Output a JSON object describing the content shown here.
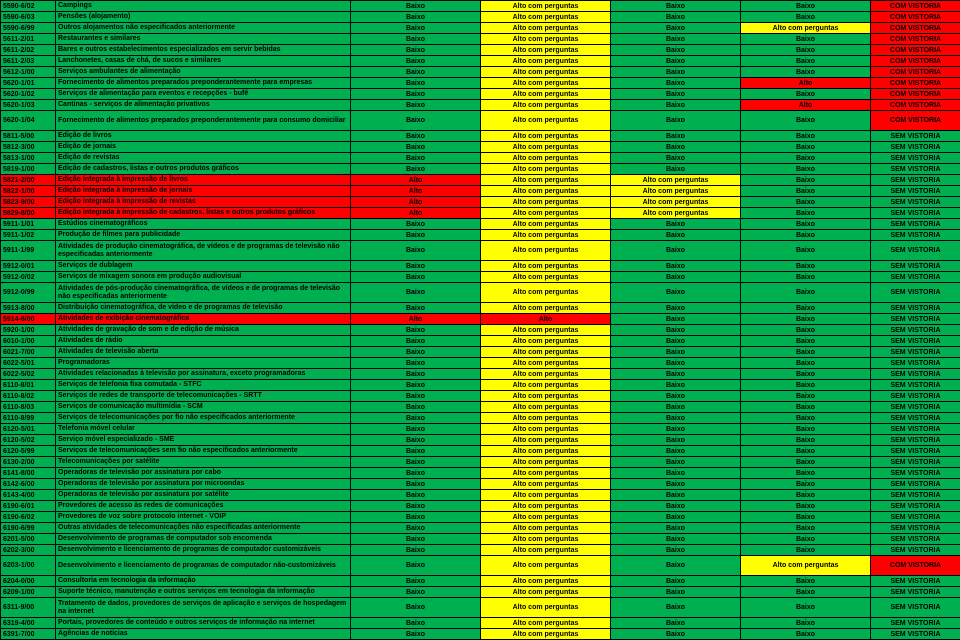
{
  "labels": {
    "baixo": "Baixo",
    "alto": "Alto",
    "altoPerg": "Alto com perguntas",
    "comV": "COM VISTORIA",
    "semV": "SEM VISTORIA"
  },
  "colors": {
    "Baixo": "c-green",
    "Alto": "c-red",
    "Alto com perguntas": "c-yellow",
    "COM VISTORIA": "c-red",
    "SEM VISTORIA": "c-green"
  },
  "rows": [
    {
      "code": "5590-6/02",
      "desc": "Campings",
      "a": "Baixo",
      "b": "Alto com perguntas",
      "c": "Baixo",
      "d": "Baixo",
      "e": "COM VISTORIA"
    },
    {
      "code": "5590-6/03",
      "desc": "Pensões (alojamento)",
      "a": "Baixo",
      "b": "Alto com perguntas",
      "c": "Baixo",
      "d": "Baixo",
      "e": "COM VISTORIA"
    },
    {
      "code": "5590-6/99",
      "desc": "Outros alojamentos não especificados anteriormente",
      "a": "Baixo",
      "b": "Alto com perguntas",
      "c": "Baixo",
      "d": "Alto com perguntas",
      "e": "COM VISTORIA"
    },
    {
      "code": "5611-2/01",
      "desc": "Restaurantes e similares",
      "a": "Baixo",
      "b": "Alto com perguntas",
      "c": "Baixo",
      "d": "Baixo",
      "e": "COM VISTORIA"
    },
    {
      "code": "5611-2/02",
      "desc": "Bares e outros estabelecimentos especializados em servir bebidas",
      "a": "Baixo",
      "b": "Alto com perguntas",
      "c": "Baixo",
      "d": "Baixo",
      "e": "COM VISTORIA"
    },
    {
      "code": "5611-2/03",
      "desc": "Lanchonetes, casas de chá, de sucos e similares",
      "a": "Baixo",
      "b": "Alto com perguntas",
      "c": "Baixo",
      "d": "Baixo",
      "e": "COM VISTORIA"
    },
    {
      "code": "5612-1/00",
      "desc": "Serviços ambulantes de alimentação",
      "a": "Baixo",
      "b": "Alto com perguntas",
      "c": "Baixo",
      "d": "Baixo",
      "e": "COM VISTORIA"
    },
    {
      "code": "5620-1/01",
      "desc": "Fornecimento de alimentos preparados preponderantemente para empresas",
      "a": "Baixo",
      "b": "Alto com perguntas",
      "c": "Baixo",
      "d": "Alto",
      "e": "COM VISTORIA"
    },
    {
      "code": "5620-1/02",
      "desc": "Serviços de alimentação para eventos e recepções - bufê",
      "a": "Baixo",
      "b": "Alto com perguntas",
      "c": "Baixo",
      "d": "Baixo",
      "e": "COM VISTORIA"
    },
    {
      "code": "5620-1/03",
      "desc": "Cantinas - serviços de alimentação privativos",
      "a": "Baixo",
      "b": "Alto com perguntas",
      "c": "Baixo",
      "d": "Alto",
      "e": "COM VISTORIA"
    },
    {
      "code": "5620-1/04",
      "desc": "Fornecimento de alimentos preparados preponderantemente para consumo domiciliar",
      "a": "Baixo",
      "b": "Alto com perguntas",
      "c": "Baixo",
      "d": "Baixo",
      "e": "COM VISTORIA",
      "tall": true
    },
    {
      "code": "5811-5/00",
      "desc": "Edição de livros",
      "a": "Baixo",
      "b": "Alto com perguntas",
      "c": "Baixo",
      "d": "Baixo",
      "e": "SEM VISTORIA"
    },
    {
      "code": "5812-3/00",
      "desc": "Edição de jornais",
      "a": "Baixo",
      "b": "Alto com perguntas",
      "c": "Baixo",
      "d": "Baixo",
      "e": "SEM VISTORIA"
    },
    {
      "code": "5813-1/00",
      "desc": "Edição de revistas",
      "a": "Baixo",
      "b": "Alto com perguntas",
      "c": "Baixo",
      "d": "Baixo",
      "e": "SEM VISTORIA"
    },
    {
      "code": "5819-1/00",
      "desc": "Edição de cadastros, listas e outros produtos gráficos",
      "a": "Baixo",
      "b": "Alto com perguntas",
      "c": "Baixo",
      "d": "Baixo",
      "e": "SEM VISTORIA"
    },
    {
      "code": "5821-2/00",
      "desc": "Edição integrada à impressão de livros",
      "a": "Alto",
      "b": "Alto com perguntas",
      "c": "Alto com perguntas",
      "d": "Baixo",
      "e": "SEM VISTORIA"
    },
    {
      "code": "5822-1/00",
      "desc": "Edição integrada à impressão de jornais",
      "a": "Alto",
      "b": "Alto com perguntas",
      "c": "Alto com perguntas",
      "d": "Baixo",
      "e": "SEM VISTORIA"
    },
    {
      "code": "5823-9/00",
      "desc": "Edição integrada à impressão de revistas",
      "a": "Alto",
      "b": "Alto com perguntas",
      "c": "Alto com perguntas",
      "d": "Baixo",
      "e": "SEM VISTORIA"
    },
    {
      "code": "5829-8/00",
      "desc": "Edição integrada à impressão de cadastros, listas e outros produtos gráficos",
      "a": "Alto",
      "b": "Alto com perguntas",
      "c": "Alto com perguntas",
      "d": "Baixo",
      "e": "SEM VISTORIA"
    },
    {
      "code": "5911-1/01",
      "desc": "Estúdios cinematográficos",
      "a": "Baixo",
      "b": "Alto com perguntas",
      "c": "Baixo",
      "d": "Baixo",
      "e": "SEM VISTORIA"
    },
    {
      "code": "5911-1/02",
      "desc": "Produção de filmes para publicidade",
      "a": "Baixo",
      "b": "Alto com perguntas",
      "c": "Baixo",
      "d": "Baixo",
      "e": "SEM VISTORIA"
    },
    {
      "code": "5911-1/99",
      "desc": "Atividades de produção cinematográfica, de vídeos e de programas de televisão não especificadas anteriormente",
      "a": "Baixo",
      "b": "Alto com perguntas",
      "c": "Baixo",
      "d": "Baixo",
      "e": "SEM VISTORIA",
      "tall": true
    },
    {
      "code": "5912-0/01",
      "desc": "Serviços de dublagem",
      "a": "Baixo",
      "b": "Alto com perguntas",
      "c": "Baixo",
      "d": "Baixo",
      "e": "SEM VISTORIA"
    },
    {
      "code": "5912-0/02",
      "desc": "Serviços de mixagem sonora em produção audiovisual",
      "a": "Baixo",
      "b": "Alto com perguntas",
      "c": "Baixo",
      "d": "Baixo",
      "e": "SEM VISTORIA"
    },
    {
      "code": "5912-0/99",
      "desc": "Atividades de pós-produção cinematográfica, de vídeos e de programas de televisão não especificadas anteriormente",
      "a": "Baixo",
      "b": "Alto com perguntas",
      "c": "Baixo",
      "d": "Baixo",
      "e": "SEM VISTORIA",
      "tall": true
    },
    {
      "code": "5913-8/00",
      "desc": "Distribuição cinematográfica, de vídeo e de programas de televisão",
      "a": "Baixo",
      "b": "Alto com perguntas",
      "c": "Baixo",
      "d": "Baixo",
      "e": "SEM VISTORIA"
    },
    {
      "code": "5914-6/00",
      "desc": "Atividades de exibição cinematográfica",
      "a": "Alto",
      "b": "Alto",
      "c": "Baixo",
      "d": "Baixo",
      "e": "SEM VISTORIA"
    },
    {
      "code": "5920-1/00",
      "desc": "Atividades de gravação de som e de edição de música",
      "a": "Baixo",
      "b": "Alto com perguntas",
      "c": "Baixo",
      "d": "Baixo",
      "e": "SEM VISTORIA"
    },
    {
      "code": "6010-1/00",
      "desc": "Atividades de rádio",
      "a": "Baixo",
      "b": "Alto com perguntas",
      "c": "Baixo",
      "d": "Baixo",
      "e": "SEM VISTORIA"
    },
    {
      "code": "6021-7/00",
      "desc": "Atividades de televisão aberta",
      "a": "Baixo",
      "b": "Alto com perguntas",
      "c": "Baixo",
      "d": "Baixo",
      "e": "SEM VISTORIA"
    },
    {
      "code": "6022-5/01",
      "desc": "Programadoras",
      "a": "Baixo",
      "b": "Alto com perguntas",
      "c": "Baixo",
      "d": "Baixo",
      "e": "SEM VISTORIA"
    },
    {
      "code": "6022-5/02",
      "desc": "Atividades relacionadas à televisão por assinatura, exceto programadoras",
      "a": "Baixo",
      "b": "Alto com perguntas",
      "c": "Baixo",
      "d": "Baixo",
      "e": "SEM VISTORIA"
    },
    {
      "code": "6110-8/01",
      "desc": "Serviços de telefonia fixa comutada - STFC",
      "a": "Baixo",
      "b": "Alto com perguntas",
      "c": "Baixo",
      "d": "Baixo",
      "e": "SEM VISTORIA"
    },
    {
      "code": "6110-8/02",
      "desc": "Serviços de redes de transporte de telecomunicações - SRTT",
      "a": "Baixo",
      "b": "Alto com perguntas",
      "c": "Baixo",
      "d": "Baixo",
      "e": "SEM VISTORIA"
    },
    {
      "code": "6110-8/03",
      "desc": "Serviços de comunicação multimídia - SCM",
      "a": "Baixo",
      "b": "Alto com perguntas",
      "c": "Baixo",
      "d": "Baixo",
      "e": "SEM VISTORIA"
    },
    {
      "code": "6110-8/99",
      "desc": "Serviços de telecomunicações por fio não especificados anteriormente",
      "a": "Baixo",
      "b": "Alto com perguntas",
      "c": "Baixo",
      "d": "Baixo",
      "e": "SEM VISTORIA"
    },
    {
      "code": "6120-5/01",
      "desc": "Telefonia móvel celular",
      "a": "Baixo",
      "b": "Alto com perguntas",
      "c": "Baixo",
      "d": "Baixo",
      "e": "SEM VISTORIA"
    },
    {
      "code": "6120-5/02",
      "desc": "Serviço móvel especializado - SME",
      "a": "Baixo",
      "b": "Alto com perguntas",
      "c": "Baixo",
      "d": "Baixo",
      "e": "SEM VISTORIA"
    },
    {
      "code": "6120-5/99",
      "desc": "Serviços de telecomunicações sem fio não especificados anteriormente",
      "a": "Baixo",
      "b": "Alto com perguntas",
      "c": "Baixo",
      "d": "Baixo",
      "e": "SEM VISTORIA"
    },
    {
      "code": "6130-2/00",
      "desc": "Telecomunicações por satélite",
      "a": "Baixo",
      "b": "Alto com perguntas",
      "c": "Baixo",
      "d": "Baixo",
      "e": "SEM VISTORIA"
    },
    {
      "code": "6141-8/00",
      "desc": "Operadoras de televisão por assinatura por cabo",
      "a": "Baixo",
      "b": "Alto com perguntas",
      "c": "Baixo",
      "d": "Baixo",
      "e": "SEM VISTORIA"
    },
    {
      "code": "6142-6/00",
      "desc": "Operadoras de televisão por assinatura por microondas",
      "a": "Baixo",
      "b": "Alto com perguntas",
      "c": "Baixo",
      "d": "Baixo",
      "e": "SEM VISTORIA"
    },
    {
      "code": "6143-4/00",
      "desc": "Operadoras de televisão por assinatura por satélite",
      "a": "Baixo",
      "b": "Alto com perguntas",
      "c": "Baixo",
      "d": "Baixo",
      "e": "SEM VISTORIA"
    },
    {
      "code": "6190-6/01",
      "desc": "Provedores de acesso às redes de comunicações",
      "a": "Baixo",
      "b": "Alto com perguntas",
      "c": "Baixo",
      "d": "Baixo",
      "e": "SEM VISTORIA"
    },
    {
      "code": "6190-6/02",
      "desc": "Provedores de voz sobre protocolo internet - VOIP",
      "a": "Baixo",
      "b": "Alto com perguntas",
      "c": "Baixo",
      "d": "Baixo",
      "e": "SEM VISTORIA"
    },
    {
      "code": "6190-6/99",
      "desc": "Outras atividades de telecomunicações não especificadas anteriormente",
      "a": "Baixo",
      "b": "Alto com perguntas",
      "c": "Baixo",
      "d": "Baixo",
      "e": "SEM VISTORIA"
    },
    {
      "code": "6201-5/00",
      "desc": "Desenvolvimento de programas de computador sob encomenda",
      "a": "Baixo",
      "b": "Alto com perguntas",
      "c": "Baixo",
      "d": "Baixo",
      "e": "SEM VISTORIA"
    },
    {
      "code": "6202-3/00",
      "desc": "Desenvolvimento e licenciamento de programas de computador customizáveis",
      "a": "Baixo",
      "b": "Alto com perguntas",
      "c": "Baixo",
      "d": "Baixo",
      "e": "SEM VISTORIA"
    },
    {
      "code": "6203-1/00",
      "desc": "Desenvolvimento e licenciamento de programas de computador não-customizáveis",
      "a": "Baixo",
      "b": "Alto com perguntas",
      "c": "Baixo",
      "d": "Alto com perguntas",
      "e": "COM VISTORIA",
      "tall": true
    },
    {
      "code": "6204-0/00",
      "desc": "Consultoria em tecnologia da informação",
      "a": "Baixo",
      "b": "Alto com perguntas",
      "c": "Baixo",
      "d": "Baixo",
      "e": "SEM VISTORIA"
    },
    {
      "code": "6209-1/00",
      "desc": "Suporte técnico, manutenção e outros serviços em tecnologia da informação",
      "a": "Baixo",
      "b": "Alto com perguntas",
      "c": "Baixo",
      "d": "Baixo",
      "e": "SEM VISTORIA"
    },
    {
      "code": "6311-9/00",
      "desc": "Tratamento de dados, provedores de serviços de aplicação e serviços de hospedagem na internet",
      "a": "Baixo",
      "b": "Alto com perguntas",
      "c": "Baixo",
      "d": "Baixo",
      "e": "SEM VISTORIA",
      "tall": true
    },
    {
      "code": "6319-4/00",
      "desc": "Portais, provedores de conteúdo e outros serviços de informação na internet",
      "a": "Baixo",
      "b": "Alto com perguntas",
      "c": "Baixo",
      "d": "Baixo",
      "e": "SEM VISTORIA"
    },
    {
      "code": "6391-7/00",
      "desc": "Agências de notícias",
      "a": "Baixo",
      "b": "Alto com perguntas",
      "c": "Baixo",
      "d": "Baixo",
      "e": "SEM VISTORIA"
    }
  ]
}
